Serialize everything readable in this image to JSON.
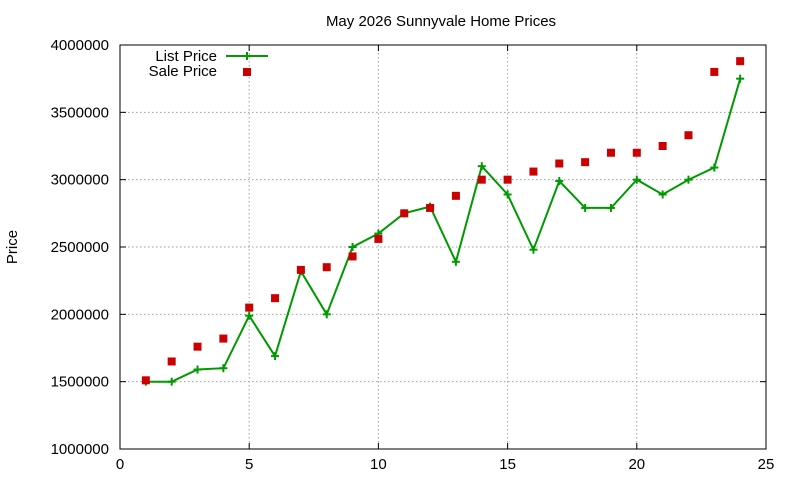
{
  "chart_data": {
    "type": "line",
    "title": "May 2026 Sunnyvale Home Prices",
    "xlabel": "",
    "ylabel": "Price",
    "xlim": [
      0,
      25
    ],
    "ylim": [
      1000000,
      4000000
    ],
    "x_ticks": [
      0,
      5,
      10,
      15,
      20,
      25
    ],
    "y_ticks": [
      1000000,
      1500000,
      2000000,
      2500000,
      3000000,
      3500000,
      4000000
    ],
    "grid": true,
    "legend_position": "top-left",
    "x": [
      1,
      2,
      3,
      4,
      5,
      6,
      7,
      8,
      9,
      10,
      11,
      12,
      13,
      14,
      15,
      16,
      17,
      18,
      19,
      20,
      21,
      22,
      23,
      24
    ],
    "series": [
      {
        "name": "List Price",
        "style": "linespoints",
        "color": "#009900",
        "values": [
          1500000,
          1500000,
          1590000,
          1600000,
          1990000,
          1690000,
          2320000,
          2000000,
          2500000,
          2600000,
          2750000,
          2800000,
          2390000,
          3100000,
          2890000,
          2480000,
          2990000,
          2790000,
          2790000,
          3000000,
          2890000,
          3000000,
          3090000,
          3750000
        ]
      },
      {
        "name": "Sale Price",
        "style": "points",
        "color": "#cc0000",
        "values": [
          1510000,
          1650000,
          1760000,
          1820000,
          2050000,
          2120000,
          2330000,
          2350000,
          2430000,
          2560000,
          2750000,
          2790000,
          2880000,
          3000000,
          3000000,
          3060000,
          3120000,
          3130000,
          3200000,
          3200000,
          3250000,
          3330000,
          3800000,
          3880000
        ]
      }
    ]
  }
}
